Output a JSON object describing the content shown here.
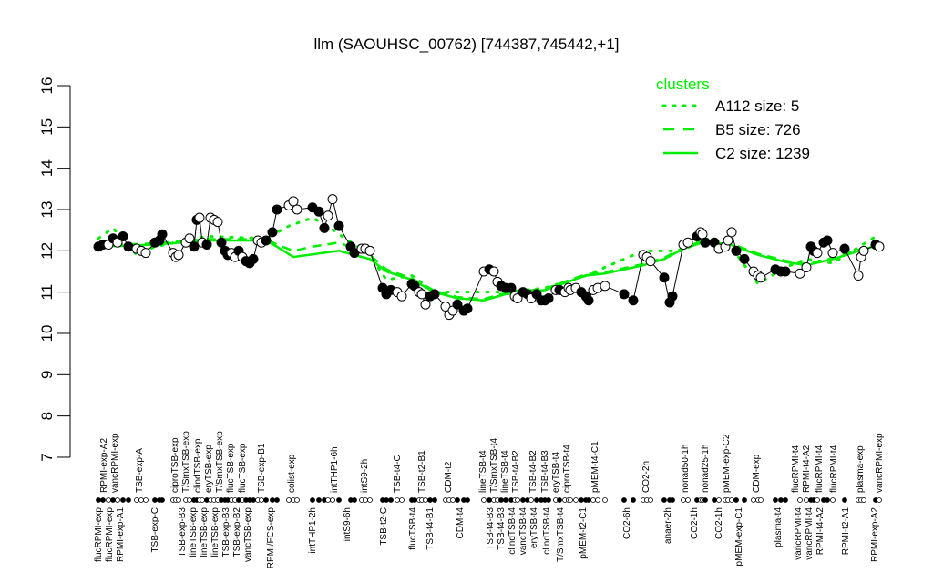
{
  "chart_data": {
    "type": "line",
    "title": "llm (SAOUHSC_00762) [744387,745442,+1]",
    "ylim": [
      7,
      16
    ],
    "yticks": [
      7,
      8,
      9,
      10,
      11,
      12,
      13,
      14,
      15,
      16
    ],
    "grid": false,
    "legend": {
      "title": "clusters",
      "placement": "top-right",
      "color": "#00ee00",
      "entries": [
        {
          "label": "A112 size: 5",
          "style": "dotted"
        },
        {
          "label": "B5 size: 726",
          "style": "dashed"
        },
        {
          "label": "C2 size: 1239",
          "style": "solid"
        }
      ]
    },
    "colors": {
      "points": "#000000",
      "clusters": "#00ee00"
    },
    "samples": [
      [
        12.1,
        1
      ],
      [
        12.15,
        1
      ],
      [
        12.15,
        0
      ],
      [
        12.3,
        1
      ],
      [
        12.2,
        0
      ],
      [
        12.35,
        1
      ],
      [
        12.1,
        1
      ],
      [
        12.05,
        0
      ],
      [
        12.0,
        0
      ],
      [
        11.95,
        0
      ],
      [
        12.2,
        1
      ],
      [
        12.25,
        1
      ],
      [
        12.4,
        1
      ],
      [
        11.95,
        0
      ],
      [
        11.85,
        0
      ],
      [
        11.9,
        0
      ],
      [
        12.2,
        0
      ],
      [
        12.3,
        0
      ],
      [
        12.1,
        1
      ],
      [
        12.75,
        1
      ],
      [
        12.8,
        0
      ],
      [
        12.2,
        0
      ],
      [
        12.15,
        1
      ],
      [
        12.8,
        0
      ],
      [
        12.75,
        0
      ],
      [
        12.7,
        0
      ],
      [
        12.2,
        1
      ],
      [
        12.0,
        1
      ],
      [
        11.9,
        1
      ],
      [
        11.95,
        0
      ],
      [
        11.85,
        0
      ],
      [
        12.0,
        1
      ],
      [
        11.85,
        0
      ],
      [
        11.75,
        1
      ],
      [
        11.7,
        1
      ],
      [
        11.8,
        1
      ],
      [
        12.25,
        0
      ],
      [
        12.2,
        0
      ],
      [
        12.25,
        1
      ],
      [
        12.45,
        1
      ],
      [
        13.0,
        1
      ],
      [
        13.1,
        0
      ],
      [
        13.2,
        0
      ],
      [
        13.0,
        0
      ],
      [
        13.05,
        1
      ],
      [
        12.95,
        1
      ],
      [
        12.55,
        1
      ],
      [
        12.85,
        0
      ],
      [
        13.25,
        0
      ],
      [
        12.6,
        1
      ],
      [
        12.1,
        1
      ],
      [
        11.95,
        1
      ],
      [
        12.05,
        0
      ],
      [
        12.05,
        0
      ],
      [
        12.0,
        0
      ],
      [
        11.1,
        1
      ],
      [
        10.95,
        1
      ],
      [
        11.05,
        1
      ],
      [
        11.0,
        0
      ],
      [
        10.9,
        0
      ],
      [
        11.2,
        1
      ],
      [
        11.15,
        1
      ],
      [
        11.0,
        0
      ],
      [
        10.95,
        0
      ],
      [
        10.7,
        0
      ],
      [
        10.9,
        1
      ],
      [
        10.95,
        1
      ],
      [
        10.65,
        0
      ],
      [
        10.45,
        0
      ],
      [
        10.55,
        0
      ],
      [
        10.7,
        1
      ],
      [
        10.55,
        1
      ],
      [
        10.6,
        1
      ],
      [
        11.5,
        0
      ],
      [
        11.55,
        1
      ],
      [
        11.5,
        0
      ],
      [
        11.25,
        0
      ],
      [
        11.15,
        1
      ],
      [
        11.1,
        1
      ],
      [
        11.1,
        1
      ],
      [
        10.9,
        0
      ],
      [
        10.85,
        0
      ],
      [
        11.0,
        1
      ],
      [
        10.95,
        1
      ],
      [
        10.85,
        0
      ],
      [
        10.95,
        1
      ],
      [
        10.8,
        1
      ],
      [
        10.8,
        1
      ],
      [
        10.85,
        1
      ],
      [
        11.05,
        0
      ],
      [
        11.05,
        1
      ],
      [
        11.0,
        0
      ],
      [
        11.1,
        0
      ],
      [
        11.05,
        0
      ],
      [
        11.1,
        0
      ],
      [
        11.0,
        1
      ],
      [
        10.9,
        1
      ],
      [
        10.8,
        1
      ],
      [
        11.05,
        0
      ],
      [
        11.1,
        0
      ],
      [
        11.15,
        0
      ],
      [
        10.95,
        1
      ],
      [
        10.8,
        1
      ],
      [
        11.9,
        0
      ],
      [
        11.85,
        0
      ],
      [
        11.75,
        0
      ],
      [
        11.35,
        1
      ],
      [
        10.75,
        1
      ],
      [
        10.9,
        1
      ],
      [
        12.15,
        0
      ],
      [
        12.2,
        0
      ],
      [
        12.35,
        1
      ],
      [
        12.45,
        0
      ],
      [
        12.4,
        0
      ],
      [
        12.2,
        1
      ],
      [
        12.2,
        1
      ],
      [
        12.05,
        0
      ],
      [
        12.1,
        0
      ],
      [
        12.25,
        0
      ],
      [
        12.45,
        0
      ],
      [
        12.0,
        1
      ],
      [
        11.8,
        1
      ],
      [
        11.5,
        0
      ],
      [
        11.4,
        0
      ],
      [
        11.35,
        0
      ],
      [
        11.55,
        1
      ],
      [
        11.5,
        1
      ],
      [
        11.5,
        1
      ],
      [
        11.45,
        0
      ],
      [
        11.6,
        0
      ],
      [
        12.1,
        1
      ],
      [
        12.0,
        1
      ],
      [
        11.95,
        0
      ],
      [
        12.2,
        1
      ],
      [
        12.25,
        1
      ],
      [
        11.95,
        0
      ],
      [
        12.05,
        1
      ],
      [
        11.4,
        0
      ],
      [
        11.85,
        0
      ],
      [
        12.0,
        0
      ],
      [
        12.15,
        1
      ],
      [
        12.1,
        0
      ]
    ],
    "series": [
      {
        "name": "A112 size: 5",
        "style": "dotted",
        "x": [
          0,
          3,
          7,
          10,
          22,
          38,
          41,
          44,
          47,
          49,
          54,
          56,
          60,
          66,
          73,
          78,
          87,
          96,
          103,
          109,
          113,
          118,
          123,
          127,
          129,
          135,
          141
        ],
        "values": [
          12.3,
          12.55,
          11.9,
          12.1,
          12.35,
          12.3,
          12.6,
          12.8,
          12.6,
          12.4,
          11.9,
          11.3,
          11.4,
          11.0,
          11.0,
          11.0,
          11.1,
          11.4,
          12.0,
          12.0,
          12.3,
          12.2,
          11.2,
          11.6,
          11.8,
          11.7,
          12.4
        ]
      },
      {
        "name": "B5 size: 726",
        "style": "dashed",
        "x": [
          0,
          10,
          22,
          38,
          40,
          42,
          44,
          49,
          54,
          56,
          60,
          66,
          70,
          73,
          78,
          87,
          96,
          100,
          103,
          106,
          109,
          113,
          118,
          123,
          127,
          129,
          135,
          141
        ],
        "values": [
          12.13,
          12.18,
          12.28,
          12.28,
          12.15,
          12.0,
          12.1,
          12.2,
          11.9,
          11.55,
          11.33,
          11.03,
          10.88,
          10.83,
          10.98,
          11.08,
          11.43,
          11.48,
          11.68,
          11.83,
          12.08,
          12.23,
          12.2,
          11.93,
          11.76,
          11.68,
          11.83,
          12.18
        ]
      },
      {
        "name": "C2 size: 1239",
        "style": "solid",
        "x": [
          0,
          10,
          22,
          38,
          40,
          42,
          49,
          54,
          56,
          60,
          66,
          70,
          73,
          78,
          87,
          96,
          100,
          103,
          106,
          109,
          113,
          118,
          123,
          127,
          129,
          135,
          141
        ],
        "values": [
          12.1,
          12.15,
          12.25,
          12.25,
          12.1,
          11.85,
          12.0,
          11.8,
          11.5,
          11.3,
          11.0,
          10.85,
          10.8,
          10.95,
          11.05,
          11.4,
          11.45,
          11.65,
          11.8,
          12.05,
          12.2,
          12.17,
          11.9,
          11.73,
          11.65,
          11.8,
          12.15
        ]
      }
    ],
    "top_labels": [
      "RPMI-exp-A2",
      "vancRPMI-exp",
      "TSB-exp-A",
      "ciproTSB-exp",
      "T/SmxTSB-exp",
      "clindTSB-exp",
      "eryTSB-exp",
      "T/SmxTSB-exp",
      "flucTSB-exp",
      "flucTSB-exp",
      "TSB-exp-B1",
      "colist-exp",
      "intTHP1-6h",
      "intS9-2h",
      "TSB-t4-C",
      "TSB-t2-B1",
      "CDM-t2",
      "lineTSB-t4",
      "T/SmxTSB-t4",
      "lineTSB-t4",
      "TSB-t4-B2",
      "TSB-t4-B2",
      "TSB-t4-B3",
      "eryTSB-t4",
      "ciproTSB-t4",
      "pMEM-t4-C1",
      "CO2-2h",
      "nonad50-1h",
      "nonad25-1h",
      "pMEM-exp-C2",
      "CDM-exp",
      "flucRPMI-t4",
      "RPMI-t4-A2",
      "flucRPMI-t4",
      "flucRPMI-t4",
      "plasma-exp",
      "vancRPMI-exp"
    ],
    "bottom_labels": [
      "flucRPMI-exp",
      "flucRPMI-exp",
      "RPMI-exp-A1",
      "TSB-exp-C",
      "TSB-exp-B3",
      "lineTSB-exp",
      "lineTSB-exp",
      "lineTSB-exp",
      "TSB-exp-B3",
      "TSB-exp-B2",
      "vancTSB-exp",
      "RPMI/FCS-exp",
      "intTHP1-2h",
      "intS9-6h",
      "TSB-t2-C",
      "flucTSB-t4",
      "TSB-t4-B1",
      "CDM-t4",
      "TSB-t4-B3",
      "TSB-t4-B3",
      "clindTSB-t4",
      "vancTSB-t4",
      "eryTSB-t4",
      "clindTSB-t4",
      "T/SmxTSB-t4",
      "pMEM-t2-C1",
      "CO2-6h",
      "anaer-2h",
      "CO2-1h",
      "CO2-1h",
      "pMEM-exp-C1",
      "plasma-t4",
      "vancRPMI-t4",
      "vancRPMI-t4",
      "RPMI-t4-A2",
      "RPMI-t2-A1",
      "RPMI-exp-A2"
    ]
  }
}
